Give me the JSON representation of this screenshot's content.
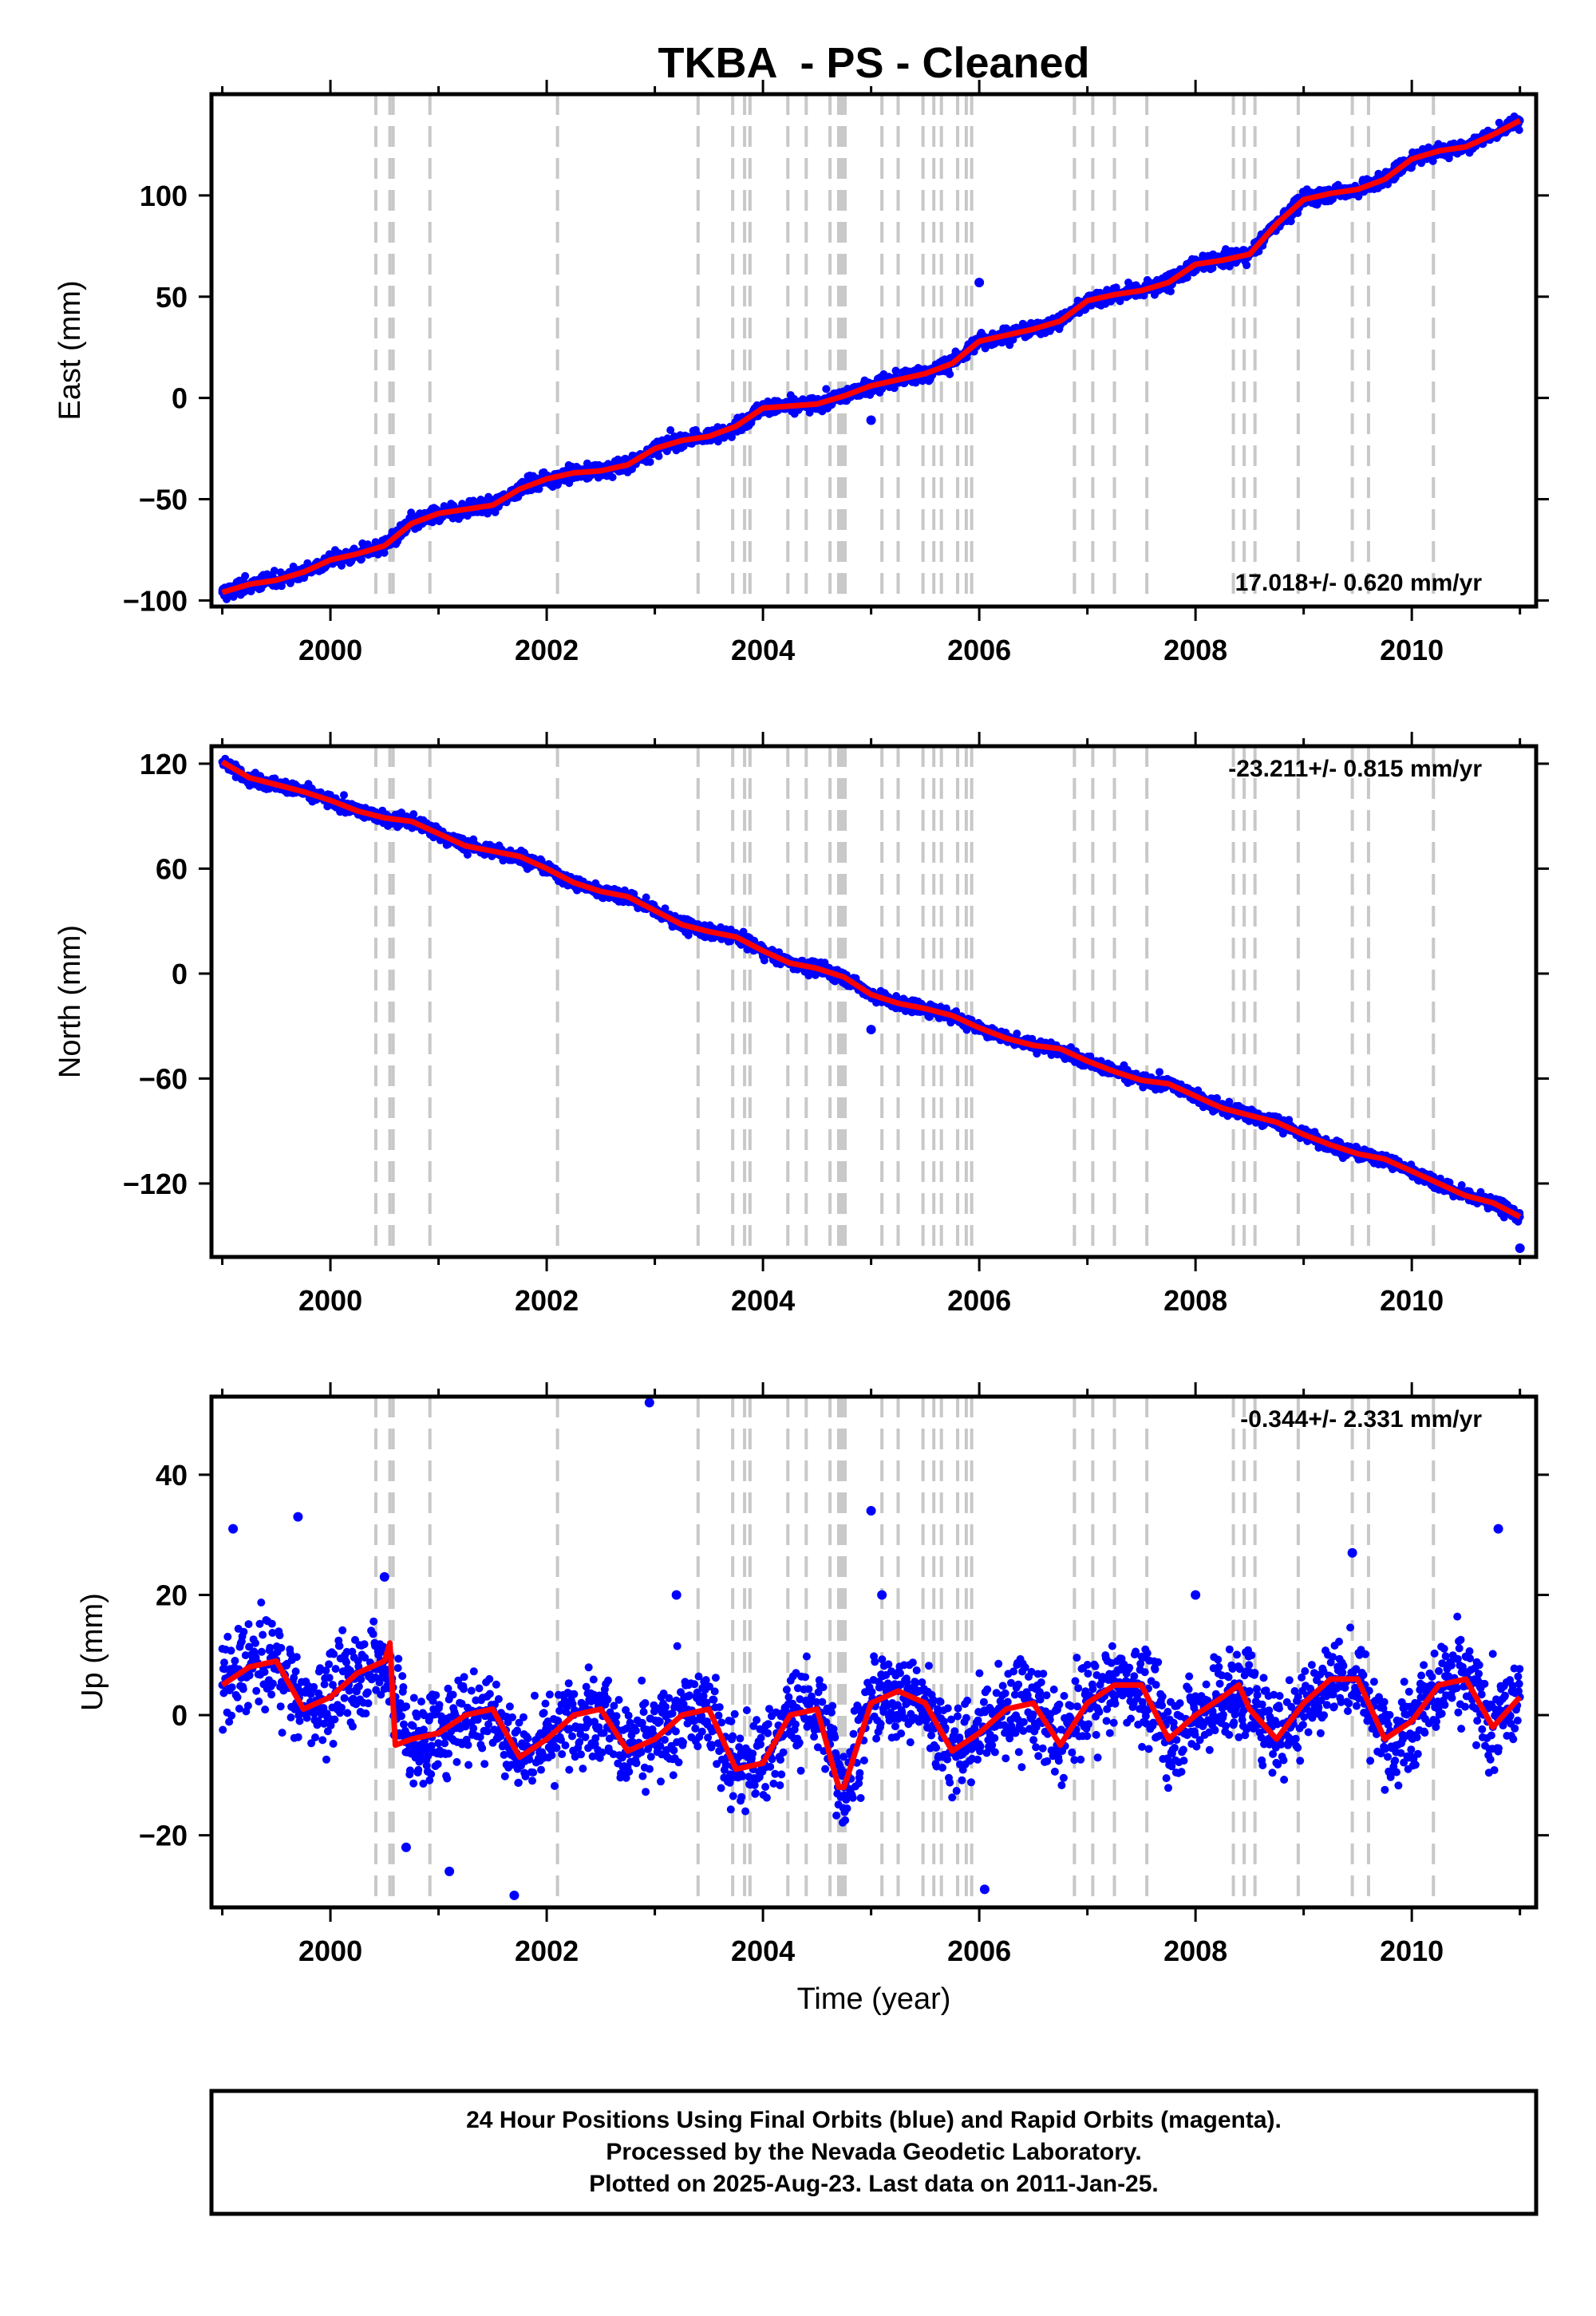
{
  "colors": {
    "final_orbits": "#0000ff",
    "model_fit": "#ff0000",
    "event_lines": "#c8c8c8",
    "frame": "#000000"
  },
  "chart_data": [
    {
      "type": "scatter",
      "title": "TKBA  - PS - Cleaned",
      "xlabel": "",
      "ylabel": "East (mm)",
      "xlim": [
        1998.9,
        2011.15
      ],
      "ylim": [
        -103,
        150
      ],
      "xticks": [
        2000,
        2002,
        2004,
        2006,
        2008,
        2010
      ],
      "yticks": [
        -100,
        -50,
        0,
        50,
        100
      ],
      "rate": "17.018+/- 0.620 mm/yr",
      "rate_position": "bottom-right",
      "grid": false,
      "event_lines": [
        2000.42,
        2000.55,
        2000.58,
        2000.92,
        2002.1,
        2003.4,
        2003.72,
        2003.83,
        2003.88,
        2004.23,
        2004.4,
        2004.62,
        2004.7,
        2004.73,
        2004.76,
        2005.1,
        2005.25,
        2005.48,
        2005.58,
        2005.65,
        2005.8,
        2005.88,
        2005.93,
        2006.88,
        2007.05,
        2007.25,
        2007.55,
        2008.35,
        2008.45,
        2008.55,
        2008.95,
        2009.45,
        2009.6,
        2010.2
      ],
      "series": [
        {
          "role": "final",
          "x": [
            1999.0,
            1999.25,
            1999.5,
            1999.75,
            2000.0,
            2000.25,
            2000.5,
            2000.75,
            2001.0,
            2001.25,
            2001.5,
            2001.75,
            2002.0,
            2002.25,
            2002.5,
            2002.75,
            2003.0,
            2003.25,
            2003.5,
            2003.75,
            2004.0,
            2004.25,
            2004.5,
            2004.75,
            2005.0,
            2005.25,
            2005.5,
            2005.75,
            2006.0,
            2006.25,
            2006.5,
            2006.75,
            2007.0,
            2007.25,
            2007.5,
            2007.75,
            2008.0,
            2008.25,
            2008.5,
            2008.75,
            2009.0,
            2009.25,
            2009.5,
            2009.75,
            2010.0,
            2010.25,
            2010.5,
            2010.75,
            2011.0
          ],
          "y": [
            -96,
            -92,
            -90,
            -86,
            -80,
            -77,
            -73,
            -62,
            -57,
            -55,
            -53,
            -45,
            -40,
            -37,
            -36,
            -33,
            -25,
            -21,
            -19,
            -14,
            -5,
            -4,
            -3,
            1,
            6,
            9,
            12,
            17,
            28,
            31,
            34,
            38,
            48,
            51,
            53,
            57,
            66,
            68,
            71,
            86,
            98,
            101,
            103,
            108,
            118,
            122,
            124,
            130,
            137
          ],
          "spread": 3
        },
        {
          "role": "outliers",
          "x": [
            2005.0,
            2006.0
          ],
          "y": [
            -11,
            57
          ]
        },
        {
          "role": "model",
          "x": [
            1999.0,
            1999.25,
            1999.5,
            1999.75,
            2000.0,
            2000.25,
            2000.5,
            2000.75,
            2001.0,
            2001.25,
            2001.5,
            2001.75,
            2002.0,
            2002.25,
            2002.5,
            2002.75,
            2003.0,
            2003.25,
            2003.5,
            2003.75,
            2004.0,
            2004.25,
            2004.5,
            2004.75,
            2005.0,
            2005.25,
            2005.5,
            2005.75,
            2006.0,
            2006.25,
            2006.5,
            2006.75,
            2007.0,
            2007.25,
            2007.5,
            2007.75,
            2008.0,
            2008.25,
            2008.5,
            2008.75,
            2009.0,
            2009.25,
            2009.5,
            2009.75,
            2010.0,
            2010.25,
            2010.5,
            2010.75,
            2011.0
          ],
          "y": [
            -96,
            -92,
            -90,
            -86,
            -80,
            -77,
            -73,
            -62,
            -57,
            -55,
            -53,
            -45,
            -40,
            -37,
            -36,
            -33,
            -25,
            -21,
            -19,
            -14,
            -5,
            -4,
            -3,
            1,
            6,
            9,
            12,
            17,
            28,
            31,
            34,
            38,
            48,
            51,
            53,
            57,
            66,
            68,
            71,
            86,
            98,
            101,
            103,
            108,
            118,
            122,
            124,
            130,
            137
          ]
        }
      ]
    },
    {
      "type": "scatter",
      "title": "",
      "xlabel": "",
      "ylabel": "North (mm)",
      "xlim": [
        1998.9,
        2011.15
      ],
      "ylim": [
        -162,
        130
      ],
      "xticks": [
        2000,
        2002,
        2004,
        2006,
        2008,
        2010
      ],
      "yticks": [
        -120,
        -60,
        0,
        60,
        120
      ],
      "rate": "-23.211+/- 0.815 mm/yr",
      "rate_position": "top-right",
      "grid": false,
      "event_lines": [
        2000.42,
        2000.55,
        2000.58,
        2000.92,
        2002.1,
        2003.4,
        2003.72,
        2003.83,
        2003.88,
        2004.23,
        2004.4,
        2004.62,
        2004.7,
        2004.73,
        2004.76,
        2005.1,
        2005.25,
        2005.48,
        2005.58,
        2005.65,
        2005.8,
        2005.88,
        2005.93,
        2006.88,
        2007.05,
        2007.25,
        2007.55,
        2008.35,
        2008.45,
        2008.55,
        2008.95,
        2009.45,
        2009.6,
        2010.2
      ],
      "series": [
        {
          "role": "final",
          "x": [
            1999.0,
            1999.25,
            1999.5,
            1999.75,
            2000.0,
            2000.25,
            2000.5,
            2000.75,
            2001.0,
            2001.25,
            2001.5,
            2001.75,
            2002.0,
            2002.25,
            2002.5,
            2002.75,
            2003.0,
            2003.25,
            2003.5,
            2003.75,
            2004.0,
            2004.25,
            2004.5,
            2004.75,
            2005.0,
            2005.25,
            2005.5,
            2005.75,
            2006.0,
            2006.25,
            2006.5,
            2006.75,
            2007.0,
            2007.25,
            2007.5,
            2007.75,
            2008.0,
            2008.25,
            2008.5,
            2008.75,
            2009.0,
            2009.25,
            2009.5,
            2009.75,
            2010.0,
            2010.25,
            2010.5,
            2010.75,
            2011.0
          ],
          "y": [
            121,
            112,
            108,
            104,
            99,
            93,
            89,
            87,
            80,
            73,
            70,
            67,
            60,
            52,
            47,
            44,
            36,
            28,
            24,
            21,
            13,
            6,
            3,
            -2,
            -12,
            -17,
            -20,
            -24,
            -31,
            -37,
            -41,
            -43,
            -50,
            -56,
            -61,
            -63,
            -70,
            -77,
            -81,
            -85,
            -92,
            -98,
            -103,
            -106,
            -113,
            -120,
            -127,
            -131,
            -139
          ],
          "spread": 3
        },
        {
          "role": "outliers",
          "x": [
            2005.0,
            2011.0
          ],
          "y": [
            -32,
            -157
          ]
        },
        {
          "role": "model",
          "x": [
            1999.0,
            1999.25,
            1999.5,
            1999.75,
            2000.0,
            2000.25,
            2000.5,
            2000.75,
            2001.0,
            2001.25,
            2001.5,
            2001.75,
            2002.0,
            2002.25,
            2002.5,
            2002.75,
            2003.0,
            2003.25,
            2003.5,
            2003.75,
            2004.0,
            2004.25,
            2004.5,
            2004.75,
            2005.0,
            2005.25,
            2005.5,
            2005.75,
            2006.0,
            2006.25,
            2006.5,
            2006.75,
            2007.0,
            2007.25,
            2007.5,
            2007.75,
            2008.0,
            2008.25,
            2008.5,
            2008.75,
            2009.0,
            2009.25,
            2009.5,
            2009.75,
            2010.0,
            2010.25,
            2010.5,
            2010.75,
            2011.0
          ],
          "y": [
            121,
            112,
            108,
            104,
            99,
            93,
            89,
            87,
            80,
            73,
            70,
            67,
            60,
            52,
            47,
            44,
            36,
            28,
            24,
            21,
            13,
            6,
            3,
            -2,
            -12,
            -17,
            -20,
            -24,
            -31,
            -37,
            -41,
            -43,
            -50,
            -56,
            -61,
            -63,
            -70,
            -77,
            -81,
            -85,
            -92,
            -98,
            -103,
            -106,
            -113,
            -120,
            -127,
            -131,
            -139
          ]
        }
      ]
    },
    {
      "type": "scatter",
      "title": "",
      "xlabel": "Time (year)",
      "ylabel": "Up (mm)",
      "xlim": [
        1998.9,
        2011.15
      ],
      "ylim": [
        -32,
        53
      ],
      "xticks": [
        2000,
        2002,
        2004,
        2006,
        2008,
        2010
      ],
      "yticks": [
        -20,
        0,
        20,
        40
      ],
      "rate": "-0.344+/- 2.331 mm/yr",
      "rate_position": "top-right",
      "grid": false,
      "event_lines": [
        2000.42,
        2000.55,
        2000.58,
        2000.92,
        2002.1,
        2003.4,
        2003.72,
        2003.83,
        2003.88,
        2004.23,
        2004.4,
        2004.62,
        2004.7,
        2004.73,
        2004.76,
        2005.1,
        2005.25,
        2005.48,
        2005.58,
        2005.65,
        2005.8,
        2005.88,
        2005.93,
        2006.88,
        2007.05,
        2007.25,
        2007.55,
        2008.35,
        2008.45,
        2008.55,
        2008.95,
        2009.45,
        2009.6,
        2010.2
      ],
      "series": [
        {
          "role": "final",
          "x": [
            1999.0,
            1999.25,
            1999.5,
            1999.75,
            2000.0,
            2000.25,
            2000.5,
            2000.75,
            2001.0,
            2001.25,
            2001.5,
            2001.75,
            2002.0,
            2002.25,
            2002.5,
            2002.75,
            2003.0,
            2003.25,
            2003.5,
            2003.75,
            2004.0,
            2004.25,
            2004.5,
            2004.75,
            2005.0,
            2005.25,
            2005.5,
            2005.75,
            2006.0,
            2006.25,
            2006.5,
            2006.75,
            2007.0,
            2007.25,
            2007.5,
            2007.75,
            2008.0,
            2008.25,
            2008.5,
            2008.75,
            2009.0,
            2009.25,
            2009.5,
            2009.75,
            2010.0,
            2010.25,
            2010.5,
            2010.75,
            2011.0
          ],
          "y": [
            5,
            8,
            9,
            1,
            3,
            7,
            9,
            -5,
            -3,
            0,
            1,
            -7,
            -4,
            0,
            1,
            -6,
            -4,
            0,
            1,
            -9,
            -8,
            0,
            1,
            -12,
            2,
            4,
            2,
            -6,
            -3,
            1,
            2,
            -5,
            2,
            5,
            5,
            -4,
            0,
            3,
            4,
            -4,
            2,
            6,
            6,
            -4,
            -1,
            5,
            6,
            -2,
            3
          ],
          "spread": 6
        },
        {
          "role": "outliers",
          "x": [
            1999.1,
            1999.7,
            2000.5,
            2000.7,
            2001.1,
            2001.7,
            2002.95,
            2003.2,
            2005.0,
            2005.1,
            2006.05,
            2008.0,
            2009.45,
            2010.8
          ],
          "y": [
            31,
            33,
            23,
            -22,
            -26,
            -30,
            52,
            20,
            34,
            20,
            -29,
            20,
            27,
            31
          ]
        },
        {
          "role": "model",
          "x": [
            1999.0,
            1999.25,
            1999.5,
            1999.75,
            2000.0,
            2000.25,
            2000.5,
            2000.55,
            2000.6,
            2000.75,
            2001.0,
            2001.25,
            2001.5,
            2001.75,
            2002.0,
            2002.25,
            2002.5,
            2002.75,
            2003.0,
            2003.25,
            2003.5,
            2003.75,
            2004.0,
            2004.25,
            2004.5,
            2004.7,
            2004.75,
            2005.0,
            2005.25,
            2005.5,
            2005.75,
            2006.0,
            2006.25,
            2006.5,
            2006.75,
            2007.0,
            2007.25,
            2007.5,
            2007.75,
            2008.0,
            2008.25,
            2008.4,
            2008.5,
            2008.75,
            2009.0,
            2009.25,
            2009.5,
            2009.75,
            2010.0,
            2010.25,
            2010.5,
            2010.75,
            2011.0
          ],
          "y": [
            5,
            8,
            9,
            1,
            3,
            7,
            9,
            12,
            -5,
            -4,
            -3,
            0,
            1,
            -7,
            -4,
            0,
            1,
            -6,
            -4,
            0,
            1,
            -9,
            -8,
            0,
            1,
            -12,
            -12,
            2,
            4,
            2,
            -6,
            -3,
            1,
            2,
            -5,
            2,
            5,
            5,
            -4,
            0,
            3,
            5,
            1,
            -4,
            2,
            6,
            6,
            -4,
            -1,
            5,
            6,
            -2,
            3
          ]
        }
      ]
    }
  ],
  "footer": {
    "line1": "24 Hour Positions Using Final Orbits (blue) and Rapid Orbits (magenta).",
    "line2": "Processed by the Nevada Geodetic Laboratory.",
    "line3": "Plotted on 2025-Aug-23. Last data on 2011-Jan-25."
  }
}
